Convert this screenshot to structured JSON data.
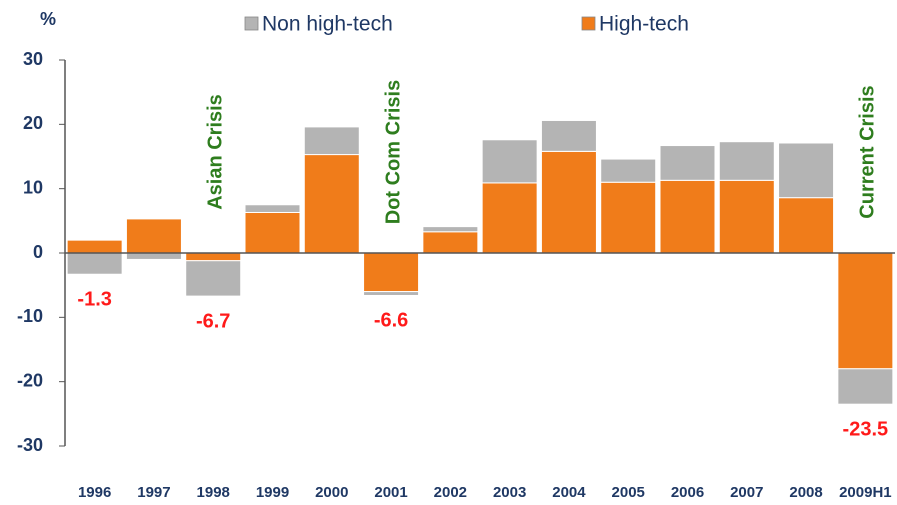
{
  "chart_data": {
    "type": "stacked_bar",
    "y_label": "%",
    "categories": [
      "1996",
      "1997",
      "1998",
      "1999",
      "2000",
      "2001",
      "2002",
      "2003",
      "2004",
      "2005",
      "2006",
      "2007",
      "2008",
      "2009H1"
    ],
    "series": [
      {
        "name": "High-tech",
        "color": "#f07c1a",
        "values": [
          2.0,
          5.3,
          -1.2,
          6.3,
          15.3,
          -6.0,
          3.3,
          10.9,
          15.8,
          11.0,
          11.3,
          11.3,
          8.6,
          -18.0
        ]
      },
      {
        "name": "Non high-tech",
        "color": "#b4b4b4",
        "values": [
          -3.3,
          -1.0,
          -5.5,
          1.2,
          4.3,
          -0.6,
          0.8,
          6.7,
          4.8,
          3.6,
          5.4,
          6.0,
          8.5,
          -5.5
        ]
      }
    ],
    "totals": [
      -1.3,
      null,
      -6.7,
      null,
      null,
      -6.6,
      null,
      null,
      null,
      null,
      null,
      null,
      null,
      -23.5
    ],
    "totals_color": "#ff1a1a",
    "annotations": [
      {
        "text": "Asian Crisis",
        "category": 2
      },
      {
        "text": "Dot Com Crisis",
        "category": 5
      },
      {
        "text": "Current Crisis",
        "category": 13
      }
    ],
    "annotation_color": "#2e7d1e",
    "ylim": [
      -30,
      30
    ],
    "yticks": [
      -30,
      -20,
      -10,
      0,
      10,
      20,
      30
    ],
    "legend": "top"
  }
}
